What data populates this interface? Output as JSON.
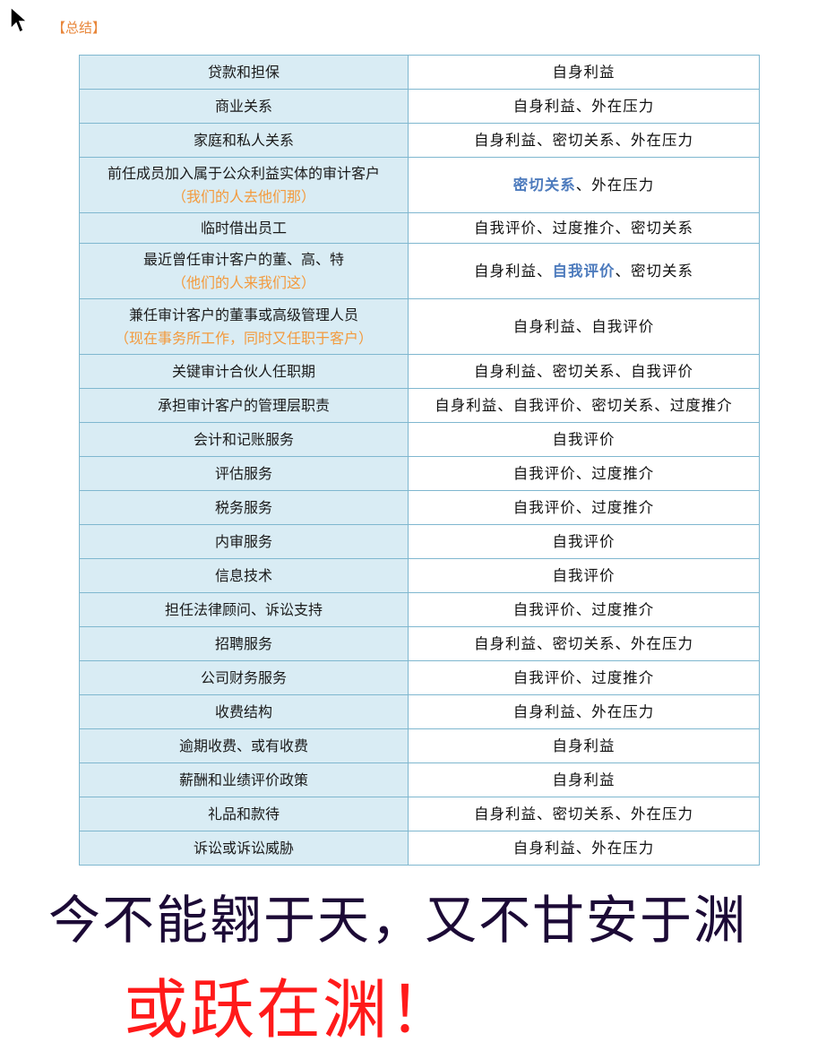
{
  "heading": "【总结】",
  "rows": [
    {
      "left": "贷款和担保",
      "right": "自身利益"
    },
    {
      "left": "商业关系",
      "right": "自身利益、外在压力"
    },
    {
      "left": "家庭和私人关系",
      "right": "自身利益、密切关系、外在压力"
    },
    {
      "left": "前任成员加入属于公众利益实体的审计客户",
      "left_note": "（我们的人去他们那）",
      "right_hl": "密切关系",
      "right_rest": "、外在压力"
    },
    {
      "left": "临时借出员工",
      "right": "自我评价、过度推介、密切关系"
    },
    {
      "left": "最近曾任审计客户的董、高、特",
      "left_note": "（他们的人来我们这）",
      "right_pre": "自身利益、",
      "right_hl": "自我评价",
      "right_rest": "、密切关系"
    },
    {
      "left": "兼任审计客户的董事或高级管理人员",
      "left_note": "（现在事务所工作，同时又任职于客户）",
      "right": "自身利益、自我评价"
    },
    {
      "left": "关键审计合伙人任职期",
      "right": "自身利益、密切关系、自我评价"
    },
    {
      "left": "承担审计客户的管理层职责",
      "right": "自身利益、自我评价、密切关系、过度推介"
    },
    {
      "left": "会计和记账服务",
      "right": "自我评价"
    },
    {
      "left": "评估服务",
      "right": "自我评价、过度推介"
    },
    {
      "left": "税务服务",
      "right": "自我评价、过度推介"
    },
    {
      "left": "内审服务",
      "right": "自我评价"
    },
    {
      "left": "信息技术",
      "right": "自我评价"
    },
    {
      "left": "担任法律顾问、诉讼支持",
      "right": "自我评价、过度推介"
    },
    {
      "left": "招聘服务",
      "right": "自身利益、密切关系、外在压力"
    },
    {
      "left": "公司财务服务",
      "right": "自我评价、过度推介"
    },
    {
      "left": "收费结构",
      "right": "自身利益、外在压力"
    },
    {
      "left": "逾期收费、或有收费",
      "right": "自身利益"
    },
    {
      "left": "薪酬和业绩评价政策",
      "right": "自身利益"
    },
    {
      "left": "礼品和款待",
      "right": "自身利益、密切关系、外在压力"
    },
    {
      "left": "诉讼或诉讼威胁",
      "right": "自身利益、外在压力"
    }
  ],
  "slogan_line1": "今不能翱于天，又不甘安于渊",
  "slogan_line2": "或跃在渊！",
  "colors": {
    "heading": "#e8863a",
    "note": "#f39a3d",
    "highlight": "#4d7bbd",
    "left_cell_bg": "#d9ecf4",
    "border": "#7fb7cf",
    "slogan1": "#1c0a36",
    "slogan2": "#ff1a1a"
  },
  "icons": {
    "cursor": "mouse-pointer-icon"
  }
}
